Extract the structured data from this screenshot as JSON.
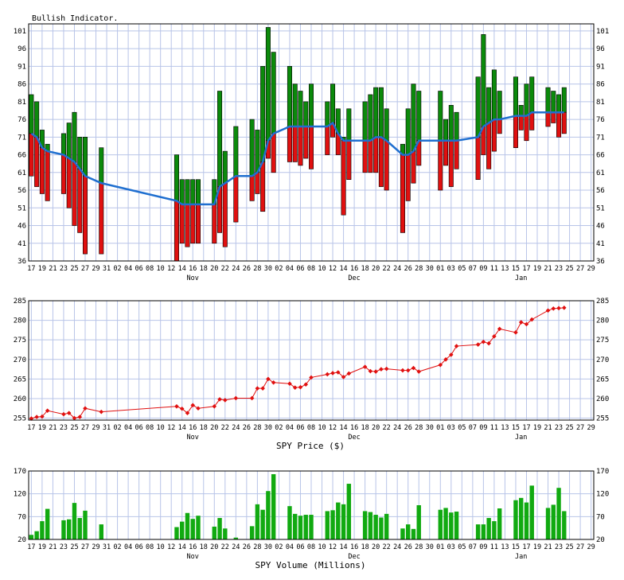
{
  "chart_data": [
    {
      "type": "bar",
      "title": "Bullish Indicator.",
      "y_ticks": [
        101,
        96,
        91,
        86,
        81,
        76,
        71,
        66,
        61,
        56,
        51,
        46,
        41,
        36
      ],
      "ylim": [
        36,
        103
      ],
      "bar_colors": {
        "up": "#0b8a0b",
        "down": "#e01010"
      },
      "line_color": "#1f6fd0",
      "points": [
        {
          "i": 0,
          "high": 83,
          "low": 60,
          "mid": 72
        },
        {
          "i": 1,
          "high": 81,
          "low": 57,
          "mid": 71
        },
        {
          "i": 2,
          "high": 73,
          "low": 55,
          "mid": 68
        },
        {
          "i": 3,
          "high": 69,
          "low": 53,
          "mid": 67
        },
        {
          "i": 6,
          "high": 72,
          "low": 55,
          "mid": 66
        },
        {
          "i": 7,
          "high": 75,
          "low": 51,
          "mid": 65
        },
        {
          "i": 8,
          "high": 78,
          "low": 46,
          "mid": 64
        },
        {
          "i": 9,
          "high": 71,
          "low": 44,
          "mid": 62
        },
        {
          "i": 10,
          "high": 71,
          "low": 38,
          "mid": 60
        },
        {
          "i": 13,
          "high": 68,
          "low": 38,
          "mid": 58
        },
        {
          "i": 27,
          "high": 66,
          "low": 36,
          "mid": 53
        },
        {
          "i": 28,
          "high": 59,
          "low": 41,
          "mid": 52
        },
        {
          "i": 29,
          "high": 59,
          "low": 40,
          "mid": 52
        },
        {
          "i": 30,
          "high": 59,
          "low": 41,
          "mid": 52
        },
        {
          "i": 31,
          "high": 59,
          "low": 41,
          "mid": 52
        },
        {
          "i": 34,
          "high": 59,
          "low": 41,
          "mid": 52
        },
        {
          "i": 35,
          "high": 84,
          "low": 44,
          "mid": 57
        },
        {
          "i": 36,
          "high": 67,
          "low": 40,
          "mid": 58
        },
        {
          "i": 38,
          "high": 74,
          "low": 47,
          "mid": 60
        },
        {
          "i": 41,
          "high": 76,
          "low": 53,
          "mid": 60
        },
        {
          "i": 42,
          "high": 73,
          "low": 55,
          "mid": 61
        },
        {
          "i": 43,
          "high": 91,
          "low": 50,
          "mid": 64
        },
        {
          "i": 44,
          "high": 102,
          "low": 65,
          "mid": 70
        },
        {
          "i": 45,
          "high": 95,
          "low": 61,
          "mid": 72
        },
        {
          "i": 48,
          "high": 91,
          "low": 64,
          "mid": 74
        },
        {
          "i": 49,
          "high": 86,
          "low": 64,
          "mid": 74
        },
        {
          "i": 50,
          "high": 84,
          "low": 63,
          "mid": 74
        },
        {
          "i": 51,
          "high": 81,
          "low": 65,
          "mid": 74
        },
        {
          "i": 52,
          "high": 86,
          "low": 62,
          "mid": 74
        },
        {
          "i": 55,
          "high": 81,
          "low": 66,
          "mid": 74
        },
        {
          "i": 56,
          "high": 86,
          "low": 71,
          "mid": 75
        },
        {
          "i": 57,
          "high": 79,
          "low": 66,
          "mid": 72
        },
        {
          "i": 58,
          "high": 71,
          "low": 49,
          "mid": 70
        },
        {
          "i": 59,
          "high": 79,
          "low": 59,
          "mid": 70
        },
        {
          "i": 62,
          "high": 81,
          "low": 61,
          "mid": 70
        },
        {
          "i": 63,
          "high": 83,
          "low": 61,
          "mid": 70
        },
        {
          "i": 64,
          "high": 85,
          "low": 61,
          "mid": 71
        },
        {
          "i": 65,
          "high": 85,
          "low": 57,
          "mid": 71
        },
        {
          "i": 66,
          "high": 79,
          "low": 56,
          "mid": 70
        },
        {
          "i": 69,
          "high": 69,
          "low": 44,
          "mid": 66
        },
        {
          "i": 70,
          "high": 79,
          "low": 53,
          "mid": 66
        },
        {
          "i": 71,
          "high": 86,
          "low": 58,
          "mid": 67
        },
        {
          "i": 72,
          "high": 84,
          "low": 63,
          "mid": 70
        },
        {
          "i": 76,
          "high": 84,
          "low": 56,
          "mid": 70
        },
        {
          "i": 77,
          "high": 76,
          "low": 63,
          "mid": 70
        },
        {
          "i": 78,
          "high": 80,
          "low": 57,
          "mid": 70
        },
        {
          "i": 79,
          "high": 78,
          "low": 62,
          "mid": 70
        },
        {
          "i": 83,
          "high": 88,
          "low": 59,
          "mid": 71
        },
        {
          "i": 84,
          "high": 100,
          "low": 66,
          "mid": 74
        },
        {
          "i": 85,
          "high": 85,
          "low": 62,
          "mid": 75
        },
        {
          "i": 86,
          "high": 90,
          "low": 67,
          "mid": 76
        },
        {
          "i": 87,
          "high": 84,
          "low": 72,
          "mid": 76
        },
        {
          "i": 90,
          "high": 88,
          "low": 68,
          "mid": 77
        },
        {
          "i": 91,
          "high": 80,
          "low": 73,
          "mid": 77
        },
        {
          "i": 92,
          "high": 86,
          "low": 70,
          "mid": 77
        },
        {
          "i": 93,
          "high": 88,
          "low": 73,
          "mid": 78
        },
        {
          "i": 96,
          "high": 85,
          "low": 74,
          "mid": 78
        },
        {
          "i": 97,
          "high": 84,
          "low": 75,
          "mid": 78
        },
        {
          "i": 98,
          "high": 83,
          "low": 71,
          "mid": 78
        },
        {
          "i": 99,
          "high": 85,
          "low": 72,
          "mid": 78
        }
      ]
    },
    {
      "type": "line",
      "xlabel": "SPY Price ($)",
      "y_ticks": [
        285,
        280,
        275,
        270,
        265,
        260,
        255
      ],
      "ylim": [
        254.5,
        285
      ],
      "line_color": "#e01010",
      "points": [
        {
          "i": 0,
          "v": 254.9
        },
        {
          "i": 1,
          "v": 255.3
        },
        {
          "i": 2,
          "v": 255.4
        },
        {
          "i": 3,
          "v": 256.9
        },
        {
          "i": 6,
          "v": 256.0
        },
        {
          "i": 7,
          "v": 256.3
        },
        {
          "i": 8,
          "v": 255.0
        },
        {
          "i": 9,
          "v": 255.3
        },
        {
          "i": 10,
          "v": 257.5
        },
        {
          "i": 13,
          "v": 256.6
        },
        {
          "i": 27,
          "v": 258.0
        },
        {
          "i": 28,
          "v": 257.4
        },
        {
          "i": 29,
          "v": 256.3
        },
        {
          "i": 30,
          "v": 258.3
        },
        {
          "i": 31,
          "v": 257.5
        },
        {
          "i": 34,
          "v": 258.0
        },
        {
          "i": 35,
          "v": 259.8
        },
        {
          "i": 36,
          "v": 259.6
        },
        {
          "i": 38,
          "v": 260.1
        },
        {
          "i": 41,
          "v": 260.1
        },
        {
          "i": 42,
          "v": 262.6
        },
        {
          "i": 43,
          "v": 262.6
        },
        {
          "i": 44,
          "v": 265.0
        },
        {
          "i": 45,
          "v": 264.1
        },
        {
          "i": 48,
          "v": 263.8
        },
        {
          "i": 49,
          "v": 262.8
        },
        {
          "i": 50,
          "v": 262.9
        },
        {
          "i": 51,
          "v": 263.6
        },
        {
          "i": 52,
          "v": 265.4
        },
        {
          "i": 55,
          "v": 266.2
        },
        {
          "i": 56,
          "v": 266.5
        },
        {
          "i": 57,
          "v": 266.7
        },
        {
          "i": 58,
          "v": 265.5
        },
        {
          "i": 59,
          "v": 266.4
        },
        {
          "i": 62,
          "v": 268.1
        },
        {
          "i": 63,
          "v": 267.0
        },
        {
          "i": 64,
          "v": 266.9
        },
        {
          "i": 65,
          "v": 267.5
        },
        {
          "i": 66,
          "v": 267.6
        },
        {
          "i": 69,
          "v": 267.2
        },
        {
          "i": 70,
          "v": 267.2
        },
        {
          "i": 71,
          "v": 267.8
        },
        {
          "i": 72,
          "v": 266.9
        },
        {
          "i": 76,
          "v": 268.6
        },
        {
          "i": 77,
          "v": 270.0
        },
        {
          "i": 78,
          "v": 271.2
        },
        {
          "i": 79,
          "v": 273.4
        },
        {
          "i": 83,
          "v": 273.8
        },
        {
          "i": 84,
          "v": 274.5
        },
        {
          "i": 85,
          "v": 274.1
        },
        {
          "i": 86,
          "v": 275.9
        },
        {
          "i": 87,
          "v": 277.8
        },
        {
          "i": 90,
          "v": 276.9
        },
        {
          "i": 91,
          "v": 279.5
        },
        {
          "i": 92,
          "v": 279.0
        },
        {
          "i": 93,
          "v": 280.2
        },
        {
          "i": 96,
          "v": 282.5
        },
        {
          "i": 97,
          "v": 283.0
        },
        {
          "i": 98,
          "v": 283.1
        },
        {
          "i": 99,
          "v": 283.2
        }
      ]
    },
    {
      "type": "bar",
      "xlabel": "SPY Volume (Millions)",
      "y_ticks": [
        170,
        120,
        70,
        20
      ],
      "ylim": [
        20,
        170
      ],
      "bar_color": "#11aa11",
      "points": [
        {
          "i": 0,
          "v": 30
        },
        {
          "i": 1,
          "v": 38
        },
        {
          "i": 2,
          "v": 60
        },
        {
          "i": 3,
          "v": 87
        },
        {
          "i": 6,
          "v": 62
        },
        {
          "i": 7,
          "v": 64
        },
        {
          "i": 8,
          "v": 100
        },
        {
          "i": 9,
          "v": 67
        },
        {
          "i": 10,
          "v": 83
        },
        {
          "i": 13,
          "v": 53
        },
        {
          "i": 27,
          "v": 47
        },
        {
          "i": 28,
          "v": 59
        },
        {
          "i": 29,
          "v": 78
        },
        {
          "i": 30,
          "v": 65
        },
        {
          "i": 31,
          "v": 72
        },
        {
          "i": 34,
          "v": 48
        },
        {
          "i": 35,
          "v": 67
        },
        {
          "i": 36,
          "v": 44
        },
        {
          "i": 38,
          "v": 24
        },
        {
          "i": 41,
          "v": 49
        },
        {
          "i": 42,
          "v": 97
        },
        {
          "i": 43,
          "v": 85
        },
        {
          "i": 44,
          "v": 126
        },
        {
          "i": 45,
          "v": 163
        },
        {
          "i": 48,
          "v": 93
        },
        {
          "i": 49,
          "v": 76
        },
        {
          "i": 50,
          "v": 72
        },
        {
          "i": 51,
          "v": 74
        },
        {
          "i": 52,
          "v": 74
        },
        {
          "i": 55,
          "v": 82
        },
        {
          "i": 56,
          "v": 84
        },
        {
          "i": 57,
          "v": 101
        },
        {
          "i": 58,
          "v": 97
        },
        {
          "i": 59,
          "v": 142
        },
        {
          "i": 62,
          "v": 82
        },
        {
          "i": 63,
          "v": 80
        },
        {
          "i": 64,
          "v": 74
        },
        {
          "i": 65,
          "v": 68
        },
        {
          "i": 66,
          "v": 76
        },
        {
          "i": 69,
          "v": 44
        },
        {
          "i": 70,
          "v": 53
        },
        {
          "i": 71,
          "v": 43
        },
        {
          "i": 72,
          "v": 95
        },
        {
          "i": 76,
          "v": 85
        },
        {
          "i": 77,
          "v": 89
        },
        {
          "i": 78,
          "v": 79
        },
        {
          "i": 79,
          "v": 81
        },
        {
          "i": 83,
          "v": 53
        },
        {
          "i": 84,
          "v": 53
        },
        {
          "i": 85,
          "v": 67
        },
        {
          "i": 86,
          "v": 60
        },
        {
          "i": 87,
          "v": 88
        },
        {
          "i": 90,
          "v": 106
        },
        {
          "i": 91,
          "v": 111
        },
        {
          "i": 92,
          "v": 101
        },
        {
          "i": 93,
          "v": 138
        },
        {
          "i": 96,
          "v": 89
        },
        {
          "i": 97,
          "v": 96
        },
        {
          "i": 98,
          "v": 133
        },
        {
          "i": 99,
          "v": 82
        }
      ]
    }
  ],
  "x_axis": {
    "day_labels": [
      "17",
      "19",
      "21",
      "23",
      "25",
      "27",
      "29",
      "31",
      "02",
      "04",
      "06",
      "08",
      "10",
      "12",
      "14",
      "16",
      "18",
      "20",
      "22",
      "24",
      "26",
      "28",
      "30",
      "02",
      "04",
      "06",
      "08",
      "10",
      "12",
      "14",
      "16",
      "18",
      "20",
      "22",
      "24",
      "26",
      "28",
      "30",
      "01",
      "03",
      "05",
      "07",
      "09",
      "11",
      "13",
      "15",
      "17",
      "19",
      "21",
      "23",
      "25",
      "27",
      "29"
    ],
    "months": [
      {
        "label": "Nov",
        "slot": 30
      },
      {
        "label": "Dec",
        "slot": 60
      },
      {
        "label": "Jan",
        "slot": 91
      }
    ]
  },
  "colors": {
    "grid": "#b8c4e8",
    "frame": "#000000"
  }
}
